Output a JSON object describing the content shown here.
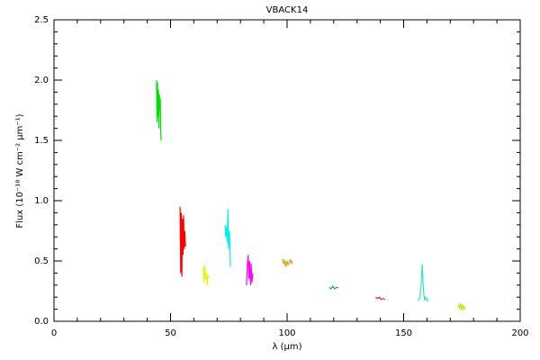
{
  "chart_data": {
    "type": "line",
    "title": "VBACK14",
    "xlabel": "λ (μm)",
    "ylabel": "Flux (10⁻¹⁸ W cm⁻² μm⁻¹)",
    "xlim": [
      0,
      200
    ],
    "xticks": [
      0,
      50,
      100,
      150,
      200
    ],
    "ylim": [
      0,
      2.5
    ],
    "yticks": [
      {
        "value": 0,
        "label": "0.0"
      },
      0.5,
      {
        "value": 1,
        "label": "1.0"
      },
      1.5,
      {
        "value": 2,
        "label": "2.0"
      },
      2.5
    ],
    "minor_ticks": 5,
    "series": [
      {
        "color": "#00e000",
        "x": [
          44.0,
          44.2,
          44.4,
          44.6,
          44.8,
          45.0,
          45.2,
          45.4,
          45.6,
          45.8,
          46.0
        ],
        "values": [
          2.0,
          1.65,
          1.98,
          1.7,
          1.92,
          1.6,
          1.88,
          1.75,
          1.85,
          1.55,
          1.5
        ]
      },
      {
        "color": "#ff0000",
        "x": [
          54.1,
          54.35,
          54.6,
          54.85,
          55.1,
          55.35,
          55.6,
          55.85,
          56.1,
          56.4
        ],
        "values": [
          0.95,
          0.4,
          0.9,
          0.37,
          0.85,
          0.55,
          0.88,
          0.6,
          0.75,
          0.62
        ]
      },
      {
        "color": "#f0f000",
        "x": [
          64.1,
          64.4,
          64.7,
          65.0,
          65.4,
          65.7,
          66.0,
          66.4
        ],
        "values": [
          0.45,
          0.32,
          0.47,
          0.35,
          0.4,
          0.3,
          0.38,
          0.36
        ]
      },
      {
        "color": "#00f0f0",
        "x": [
          73.4,
          73.7,
          74.0,
          74.3,
          74.6,
          74.9,
          75.3,
          75.7
        ],
        "values": [
          0.8,
          0.7,
          0.78,
          0.65,
          0.93,
          0.6,
          0.75,
          0.45
        ]
      },
      {
        "color": "#ff00ff",
        "x": [
          82.6,
          82.9,
          83.3,
          83.6,
          83.9,
          84.3,
          84.6,
          84.9,
          85.3
        ],
        "values": [
          0.3,
          0.45,
          0.55,
          0.35,
          0.5,
          0.3,
          0.48,
          0.32,
          0.4
        ]
      },
      {
        "color": "#e09a00",
        "x": [
          98.0,
          98.5,
          99.0,
          99.4,
          99.9,
          100.4,
          100.9,
          101.4,
          101.9,
          102.3
        ],
        "values": [
          0.52,
          0.48,
          0.5,
          0.45,
          0.5,
          0.47,
          0.49,
          0.51,
          0.48,
          0.5
        ]
      },
      {
        "color": "#1a8fc8",
        "x": [
          118.0,
          118.8,
          119.6,
          120.4,
          121.2,
          122.0
        ],
        "values": [
          0.28,
          0.27,
          0.29,
          0.27,
          0.28,
          0.28
        ]
      },
      {
        "color": "#e0206a",
        "x": [
          138.0,
          138.8,
          139.6,
          140.4,
          141.2,
          142.0
        ],
        "values": [
          0.2,
          0.19,
          0.2,
          0.18,
          0.19,
          0.18
        ]
      },
      {
        "color": "#30e0c8",
        "x": [
          156.0,
          156.5,
          157.0,
          157.5,
          158.0,
          158.5,
          159.0,
          159.5,
          160.0,
          160.6
        ],
        "values": [
          0.17,
          0.18,
          0.2,
          0.3,
          0.47,
          0.25,
          0.18,
          0.2,
          0.17,
          0.18
        ]
      },
      {
        "color": "#c8e000",
        "x": [
          173.5,
          174.0,
          174.5,
          175.0,
          175.5,
          176.0,
          176.5
        ],
        "values": [
          0.14,
          0.1,
          0.15,
          0.09,
          0.13,
          0.1,
          0.12
        ]
      }
    ]
  }
}
